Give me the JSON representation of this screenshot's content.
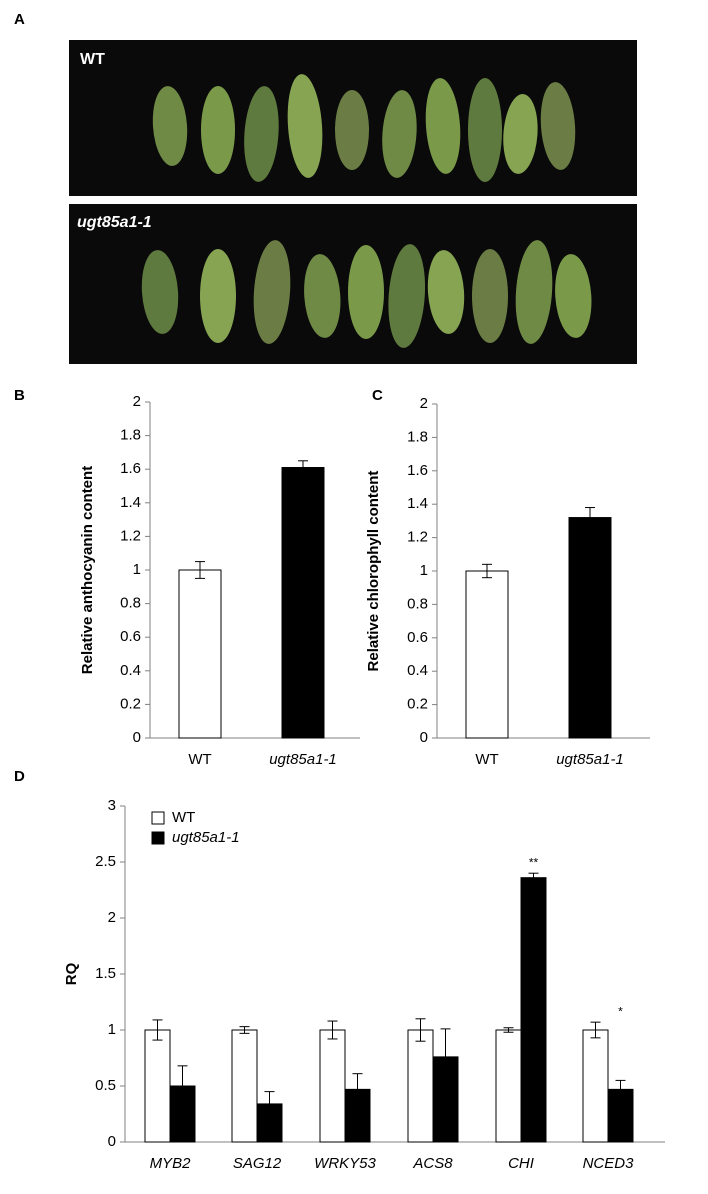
{
  "panels": [
    "A",
    "B",
    "C",
    "D"
  ],
  "photo": {
    "rows": [
      "WT",
      "ugt85a1-1"
    ]
  },
  "chart_data": [
    {
      "type": "bar",
      "ylabel": "Relative anthocyanin content",
      "categories": [
        "WT",
        "ugt85a1-1"
      ],
      "values": [
        1,
        1.61
      ],
      "errors": [
        0.05,
        0.04
      ],
      "colors": [
        "#ffffff",
        "#000000"
      ],
      "ylim": [
        0,
        2
      ],
      "yticks": [
        0,
        0.2,
        0.4,
        0.6,
        0.8,
        1,
        1.2,
        1.4,
        1.6,
        1.8,
        2
      ]
    },
    {
      "type": "bar",
      "ylabel": "Relative chlorophyll content",
      "categories": [
        "WT",
        "ugt85a1-1"
      ],
      "values": [
        1,
        1.32
      ],
      "errors": [
        0.04,
        0.06
      ],
      "colors": [
        "#ffffff",
        "#000000"
      ],
      "ylim": [
        0,
        2
      ],
      "yticks": [
        0,
        0.2,
        0.4,
        0.6,
        0.8,
        1,
        1.2,
        1.4,
        1.6,
        1.8,
        2
      ]
    },
    {
      "type": "bar",
      "ylabel": "RQ",
      "categories": [
        "MYB2",
        "SAG12",
        "WRKY53",
        "ACS8",
        "CHI",
        "NCED3"
      ],
      "series": [
        {
          "name": "WT",
          "color": "#ffffff",
          "values": [
            1,
            1,
            1,
            1,
            1,
            1
          ],
          "errors": [
            0.09,
            0.03,
            0.08,
            0.1,
            0.02,
            0.07
          ]
        },
        {
          "name": "ugt85a1-1",
          "color": "#000000",
          "values": [
            0.5,
            0.34,
            0.47,
            0.76,
            2.36,
            0.47
          ],
          "errors": [
            0.18,
            0.11,
            0.14,
            0.25,
            0.04,
            0.08
          ]
        }
      ],
      "annotations": [
        {
          "text": "**",
          "category": "CHI"
        },
        {
          "text": "*",
          "category": "NCED3"
        }
      ],
      "ylim": [
        0,
        3
      ],
      "yticks": [
        0,
        0.5,
        1,
        1.5,
        2,
        2.5,
        3
      ],
      "legend": "upper left"
    }
  ]
}
